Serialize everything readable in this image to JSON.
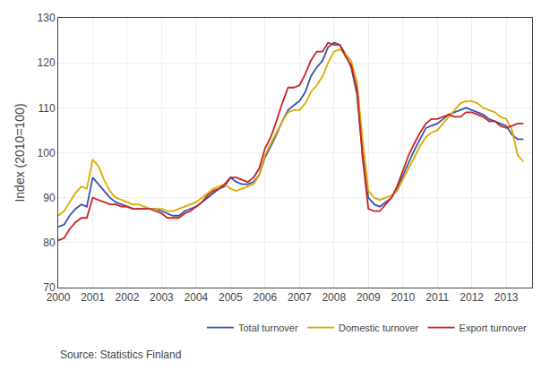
{
  "chart_data": {
    "type": "line",
    "ylabel": "Index (2010=100)",
    "annotations": [
      "Source: Statistics Finland"
    ],
    "xlim": [
      2000.0,
      2013.75
    ],
    "ylim": [
      70,
      130
    ],
    "xticks": [
      2000,
      2001,
      2002,
      2003,
      2004,
      2005,
      2006,
      2007,
      2008,
      2009,
      2010,
      2011,
      2012,
      2013
    ],
    "yticks": [
      70,
      80,
      90,
      100,
      110,
      120,
      130
    ],
    "grid": true,
    "legend": "lower right",
    "x": [
      2000.0,
      2000.17,
      2000.33,
      2000.5,
      2000.67,
      2000.83,
      2001.0,
      2001.17,
      2001.33,
      2001.5,
      2001.67,
      2001.83,
      2002.0,
      2002.17,
      2002.33,
      2002.5,
      2002.67,
      2002.83,
      2003.0,
      2003.17,
      2003.33,
      2003.5,
      2003.67,
      2003.83,
      2004.0,
      2004.17,
      2004.33,
      2004.5,
      2004.67,
      2004.83,
      2005.0,
      2005.17,
      2005.33,
      2005.5,
      2005.67,
      2005.83,
      2006.0,
      2006.17,
      2006.33,
      2006.5,
      2006.67,
      2006.83,
      2007.0,
      2007.17,
      2007.33,
      2007.5,
      2007.67,
      2007.83,
      2008.0,
      2008.17,
      2008.33,
      2008.5,
      2008.67,
      2008.83,
      2009.0,
      2009.17,
      2009.33,
      2009.5,
      2009.67,
      2009.83,
      2010.0,
      2010.17,
      2010.33,
      2010.5,
      2010.67,
      2010.83,
      2011.0,
      2011.17,
      2011.33,
      2011.5,
      2011.67,
      2011.83,
      2012.0,
      2012.17,
      2012.33,
      2012.5,
      2012.67,
      2012.83,
      2013.0,
      2013.17,
      2013.33,
      2013.5
    ],
    "series": [
      {
        "name": "Total turnover",
        "color": "#3355aa",
        "values": [
          83.5,
          84.0,
          86.0,
          87.5,
          88.5,
          88.0,
          94.5,
          93.0,
          91.5,
          90.0,
          89.0,
          88.5,
          88.0,
          87.5,
          87.5,
          87.5,
          87.5,
          87.5,
          87.0,
          86.5,
          86.0,
          86.0,
          87.0,
          87.5,
          88.0,
          89.0,
          90.0,
          91.0,
          92.0,
          92.5,
          94.5,
          93.5,
          93.0,
          93.0,
          93.5,
          95.0,
          99.0,
          101.5,
          104.0,
          107.0,
          109.5,
          110.5,
          111.5,
          113.5,
          117.0,
          119.0,
          120.5,
          123.5,
          124.5,
          124.0,
          122.0,
          119.0,
          113.0,
          100.0,
          90.0,
          88.5,
          88.0,
          89.0,
          90.0,
          92.0,
          95.0,
          98.0,
          100.5,
          103.0,
          105.5,
          106.0,
          106.5,
          107.5,
          108.5,
          109.0,
          109.5,
          110.0,
          109.5,
          109.0,
          108.5,
          107.5,
          107.0,
          106.5,
          106.0,
          104.0,
          103.0,
          103.0
        ]
      },
      {
        "name": "Domestic turnover",
        "color": "#ddaa00",
        "values": [
          86.0,
          87.0,
          89.0,
          91.0,
          92.5,
          92.0,
          98.5,
          97.0,
          94.0,
          91.5,
          90.0,
          89.5,
          89.0,
          88.5,
          88.5,
          88.0,
          87.5,
          87.5,
          87.5,
          87.0,
          87.0,
          87.5,
          88.0,
          88.5,
          89.0,
          90.0,
          91.0,
          92.0,
          92.5,
          93.0,
          92.0,
          91.5,
          92.0,
          92.5,
          93.0,
          95.0,
          99.5,
          102.0,
          104.5,
          107.0,
          109.0,
          109.5,
          109.5,
          111.0,
          113.5,
          115.0,
          117.0,
          120.0,
          122.5,
          123.0,
          122.0,
          120.5,
          115.5,
          103.0,
          91.5,
          90.0,
          89.5,
          90.0,
          90.5,
          91.5,
          94.0,
          96.5,
          99.0,
          101.5,
          103.5,
          104.5,
          105.0,
          106.5,
          108.0,
          109.5,
          111.0,
          111.5,
          111.5,
          111.0,
          110.0,
          109.5,
          109.0,
          108.0,
          107.5,
          105.0,
          99.5,
          98.0
        ]
      },
      {
        "name": "Export turnover",
        "color": "#cc2222",
        "values": [
          80.5,
          81.0,
          83.0,
          84.5,
          85.5,
          85.5,
          90.0,
          89.5,
          89.0,
          88.5,
          88.5,
          88.0,
          88.0,
          87.5,
          87.5,
          87.5,
          87.5,
          87.0,
          86.5,
          85.5,
          85.5,
          85.5,
          86.5,
          87.0,
          88.0,
          89.0,
          90.5,
          91.5,
          92.0,
          93.0,
          94.5,
          94.5,
          94.0,
          93.5,
          94.5,
          96.5,
          101.0,
          103.5,
          107.0,
          111.0,
          114.5,
          114.5,
          115.0,
          117.5,
          120.5,
          122.5,
          122.5,
          124.5,
          124.0,
          124.0,
          121.5,
          119.5,
          114.0,
          99.0,
          87.5,
          87.0,
          87.0,
          88.5,
          90.0,
          92.5,
          96.0,
          99.5,
          102.0,
          104.5,
          106.5,
          107.5,
          107.5,
          108.0,
          108.5,
          108.0,
          108.0,
          109.0,
          109.0,
          108.5,
          108.0,
          107.0,
          107.0,
          106.0,
          105.5,
          106.0,
          106.5,
          106.5
        ]
      }
    ]
  }
}
